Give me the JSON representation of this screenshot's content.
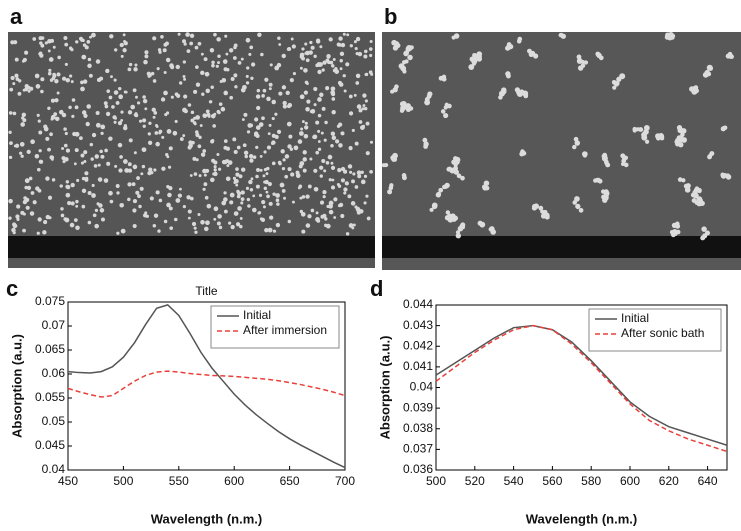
{
  "panel_labels": [
    "a",
    "b",
    "c",
    "d"
  ],
  "chart_data": [
    {
      "type": "line",
      "title": "Title",
      "x_label": "Wavelength (n.m.)",
      "y_label": "Absorption (a.u.)",
      "x": [
        450,
        460,
        470,
        480,
        490,
        500,
        510,
        520,
        530,
        540,
        550,
        560,
        570,
        580,
        590,
        600,
        610,
        620,
        630,
        640,
        650,
        660,
        670,
        680,
        690,
        700
      ],
      "series": [
        {
          "name": "Initial",
          "color": "#555555",
          "dashed": false,
          "values": [
            0.0605,
            0.0603,
            0.0602,
            0.0605,
            0.0615,
            0.0635,
            0.0665,
            0.0703,
            0.0737,
            0.0744,
            0.0722,
            0.0685,
            0.0645,
            0.0612,
            0.0585,
            0.0558,
            0.0535,
            0.0515,
            0.0497,
            0.048,
            0.0465,
            0.0452,
            0.044,
            0.0428,
            0.0416,
            0.0405
          ]
        },
        {
          "name": "After immersion",
          "color": "#e8413c",
          "dashed": true,
          "values": [
            0.057,
            0.0563,
            0.0557,
            0.0552,
            0.0555,
            0.057,
            0.0585,
            0.0597,
            0.0604,
            0.0606,
            0.0604,
            0.0601,
            0.0599,
            0.0597,
            0.0596,
            0.0595,
            0.0593,
            0.0591,
            0.0589,
            0.0586,
            0.0582,
            0.0578,
            0.0573,
            0.0568,
            0.0562,
            0.0555
          ]
        }
      ],
      "xlim": [
        450,
        700
      ],
      "xticks": [
        450,
        500,
        550,
        600,
        650,
        700
      ],
      "ylim": [
        0.04,
        0.075
      ],
      "yticks": [
        0.04,
        0.045,
        0.05,
        0.055,
        0.06,
        0.065,
        0.07,
        0.075
      ],
      "legend": "upper right"
    },
    {
      "type": "line",
      "x_label": "Wavelength (n.m.)",
      "y_label": "Absorption (a.u.)",
      "x": [
        500,
        510,
        520,
        530,
        540,
        550,
        560,
        570,
        580,
        590,
        600,
        610,
        620,
        630,
        640,
        650
      ],
      "series": [
        {
          "name": "Initial",
          "color": "#555555",
          "dashed": false,
          "values": [
            0.0406,
            0.0412,
            0.0418,
            0.0424,
            0.0429,
            0.043,
            0.0428,
            0.0422,
            0.0413,
            0.0403,
            0.0393,
            0.0386,
            0.0381,
            0.0378,
            0.0375,
            0.0372
          ]
        },
        {
          "name": "After sonic bath",
          "color": "#e8413c",
          "dashed": true,
          "values": [
            0.0403,
            0.041,
            0.0417,
            0.0423,
            0.0428,
            0.043,
            0.0428,
            0.0421,
            0.0412,
            0.0402,
            0.0392,
            0.0384,
            0.0379,
            0.0375,
            0.0372,
            0.0369
          ]
        }
      ],
      "xlim": [
        500,
        650
      ],
      "xticks": [
        500,
        520,
        540,
        560,
        580,
        600,
        620,
        640
      ],
      "ylim": [
        0.036,
        0.044
      ],
      "yticks": [
        0.036,
        0.037,
        0.038,
        0.039,
        0.04,
        0.041,
        0.042,
        0.043,
        0.044
      ],
      "legend": "upper right"
    }
  ]
}
